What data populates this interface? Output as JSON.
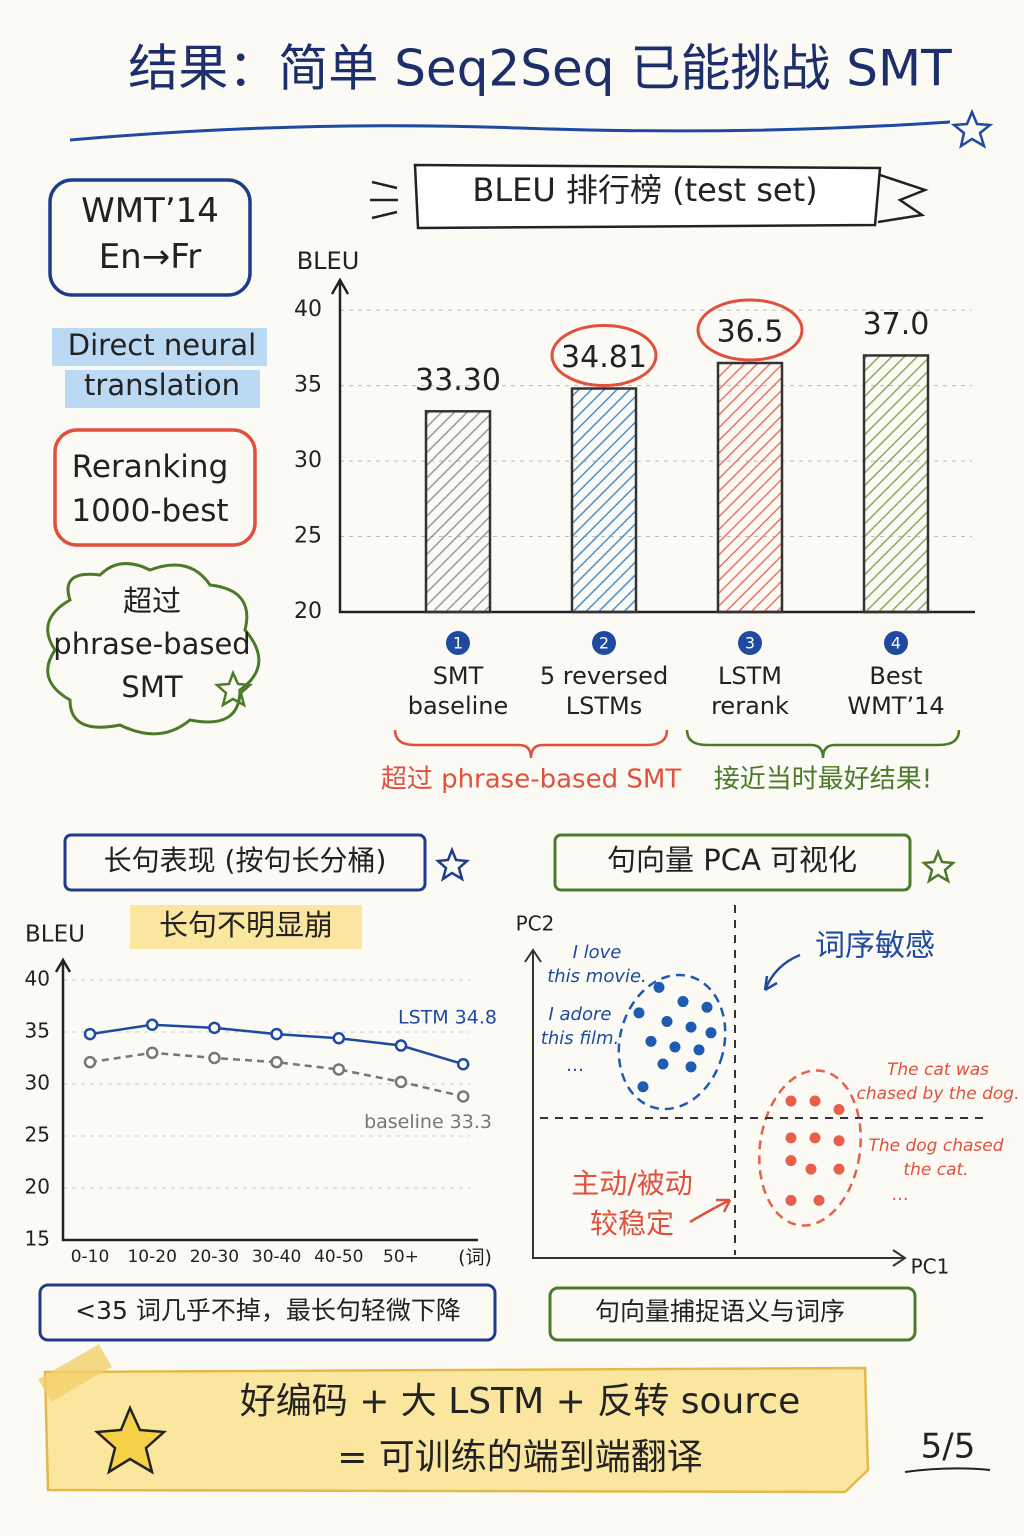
{
  "title": "结果：简单 Seq2Seq 已能挑战 SMT",
  "side_notes": [
    "WMT’14\nEn→Fr",
    "Direct neural\ntranslation",
    "Reranking\n1000-best",
    "超过\nphrase-based\nSMT"
  ],
  "chart_data": [
    {
      "type": "bar",
      "title": "BLEU 排行榜 (test set)",
      "ylabel": "BLEU",
      "categories": [
        "SMT\nbaseline",
        "5 reversed\nLSTMs",
        "LSTM\nrerank",
        "Best\nWMT’14"
      ],
      "ranks": [
        1,
        2,
        3,
        4
      ],
      "values": [
        33.3,
        34.81,
        36.5,
        37.0
      ],
      "value_labels": [
        "33.30",
        "34.81",
        "36.5",
        "37.0"
      ],
      "colors": [
        "#9a9a9a",
        "#4a8fd6",
        "#ea7663",
        "#86ad5e"
      ],
      "circled_labels": [
        1,
        2
      ],
      "ylim": [
        20,
        42
      ],
      "yticks": [
        20,
        25,
        30,
        35,
        40
      ],
      "grid": true,
      "annotations": [
        {
          "text": "超过 phrase-based SMT",
          "from": 0,
          "to": 1,
          "color": "#e0503c"
        },
        {
          "text": "接近当时最好结果!",
          "from": 2,
          "to": 3,
          "color": "#4a7a2a"
        }
      ]
    },
    {
      "type": "line",
      "title": "长句表现 (按句长分桶)",
      "badge": "长句不明显崩",
      "ylabel": "BLEU",
      "xlabel": "(词)",
      "categories": [
        "0-10",
        "10-20",
        "20-30",
        "30-40",
        "40-50",
        "50+",
        null
      ],
      "series": [
        {
          "name": "LSTM 34.8",
          "color": "#1f4aa0",
          "dashed": false,
          "values": [
            34.8,
            35.7,
            35.4,
            34.8,
            34.4,
            33.7,
            31.9
          ]
        },
        {
          "name": "baseline 33.3",
          "color": "#777777",
          "dashed": true,
          "values": [
            32.1,
            33.0,
            32.5,
            32.1,
            31.4,
            30.2,
            28.8
          ]
        }
      ],
      "ylim": [
        15,
        41
      ],
      "yticks": [
        15,
        20,
        25,
        30,
        35,
        40
      ],
      "grid": true,
      "caption": "<35 词几乎不掉，最长句轻微下降"
    },
    {
      "type": "scatter",
      "title": "句向量 PCA 可视化",
      "xlabel": "PC1",
      "ylabel": "PC2",
      "xlim": [
        -5,
        5
      ],
      "ylim": [
        -5,
        5
      ],
      "series": [
        {
          "color": "#1f5bb0",
          "x": [
            -1.9,
            -1.3,
            -0.7,
            -2.4,
            -1.7,
            -1.1,
            -0.6,
            -2.1,
            -1.5,
            -0.9,
            -1.8,
            -1.1,
            -2.3
          ],
          "y": [
            4.6,
            4.1,
            3.9,
            3.7,
            3.4,
            3.2,
            3.0,
            2.7,
            2.5,
            2.4,
            1.9,
            1.8,
            1.1
          ]
        },
        {
          "color": "#e8604a",
          "x": [
            1.4,
            2.0,
            2.6,
            1.4,
            2.0,
            2.6,
            1.4,
            1.9,
            2.6,
            1.4,
            2.1
          ],
          "y": [
            0.6,
            0.6,
            0.3,
            -0.7,
            -0.7,
            -0.8,
            -1.5,
            -1.8,
            -1.8,
            -2.9,
            -2.9
          ]
        }
      ],
      "annotations": [
        "词序敏感",
        "主动/被动\n较稳定"
      ],
      "examples": [
        "I love\nthis movie.",
        "I adore\nthis film.",
        "…",
        "The cat was\nchased by the dog.",
        "The dog chased\nthe cat.",
        "…"
      ],
      "caption": "句向量捕捉语义与词序"
    }
  ],
  "banner": "好编码 + 大 LSTM + 反转 source\n= 可训练的端到端翻译",
  "page": "5/5"
}
